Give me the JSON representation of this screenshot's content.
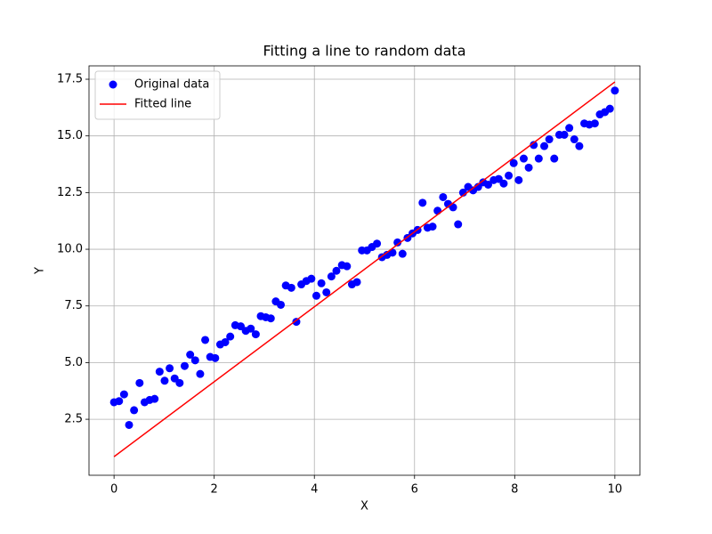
{
  "chart_data": {
    "type": "scatter",
    "title": "Fitting a line to random data",
    "xlabel": "X",
    "ylabel": "Y",
    "xlim": [
      -0.5,
      10.5
    ],
    "ylim": [
      0.03,
      18.09
    ],
    "xticks": [
      0,
      2,
      4,
      6,
      8,
      10
    ],
    "yticks": [
      2.5,
      {
        "value": 5,
        "label": "5.0"
      },
      7.5,
      {
        "value": 10,
        "label": "10.0"
      },
      12.5,
      {
        "value": 15,
        "label": "15.0"
      },
      17.5
    ],
    "grid": true,
    "legend": "upper-left",
    "series": [
      {
        "name": "Original data",
        "type": "scatter",
        "color": "#0000ff",
        "x": [
          0,
          0.1,
          0.2,
          0.3,
          0.4,
          0.51,
          0.61,
          0.71,
          0.81,
          0.91,
          1.01,
          1.11,
          1.21,
          1.31,
          1.41,
          1.52,
          1.62,
          1.72,
          1.82,
          1.92,
          2.02,
          2.12,
          2.22,
          2.32,
          2.42,
          2.53,
          2.63,
          2.73,
          2.83,
          2.93,
          3.03,
          3.13,
          3.23,
          3.33,
          3.43,
          3.54,
          3.64,
          3.74,
          3.84,
          3.94,
          4.04,
          4.14,
          4.24,
          4.34,
          4.44,
          4.55,
          4.65,
          4.75,
          4.85,
          4.95,
          5.05,
          5.15,
          5.25,
          5.35,
          5.45,
          5.56,
          5.66,
          5.76,
          5.86,
          5.96,
          6.06,
          6.16,
          6.26,
          6.36,
          6.46,
          6.57,
          6.67,
          6.77,
          6.87,
          6.97,
          7.07,
          7.17,
          7.27,
          7.37,
          7.47,
          7.58,
          7.68,
          7.78,
          7.88,
          7.98,
          8.08,
          8.18,
          8.28,
          8.38,
          8.48,
          8.59,
          8.69,
          8.79,
          8.89,
          8.99,
          9.09,
          9.19,
          9.29,
          9.39,
          9.49,
          9.6,
          9.7,
          9.8,
          9.9,
          10.0
        ],
        "values": [
          3.25,
          3.3,
          3.6,
          2.25,
          2.9,
          4.1,
          3.25,
          3.35,
          3.4,
          4.6,
          4.2,
          4.75,
          4.3,
          4.1,
          4.85,
          5.35,
          5.1,
          4.5,
          6.0,
          5.25,
          5.2,
          5.8,
          5.9,
          6.15,
          6.65,
          6.6,
          6.4,
          6.5,
          6.25,
          7.05,
          7.0,
          6.95,
          7.7,
          7.55,
          8.4,
          8.3,
          6.8,
          8.45,
          8.6,
          8.7,
          7.95,
          8.5,
          8.1,
          8.8,
          9.05,
          9.3,
          9.25,
          8.45,
          8.55,
          9.95,
          9.95,
          10.1,
          10.25,
          9.65,
          9.75,
          9.85,
          10.3,
          9.8,
          10.5,
          10.7,
          10.85,
          12.05,
          10.95,
          11.0,
          11.7,
          12.3,
          12.0,
          11.85,
          11.1,
          12.5,
          12.75,
          12.6,
          12.75,
          12.95,
          12.85,
          13.05,
          13.1,
          12.9,
          13.25,
          13.8,
          13.05,
          14.0,
          13.6,
          14.6,
          14.0,
          14.55,
          14.85,
          14.0,
          15.05,
          15.05,
          15.35,
          14.85,
          14.55,
          15.55,
          15.5,
          15.55,
          15.95,
          16.05,
          16.2,
          17.0
        ]
      },
      {
        "name": "Fitted line",
        "type": "line",
        "color": "#ff0000",
        "x": [
          0,
          10
        ],
        "values": [
          0.85,
          17.38
        ]
      }
    ]
  }
}
